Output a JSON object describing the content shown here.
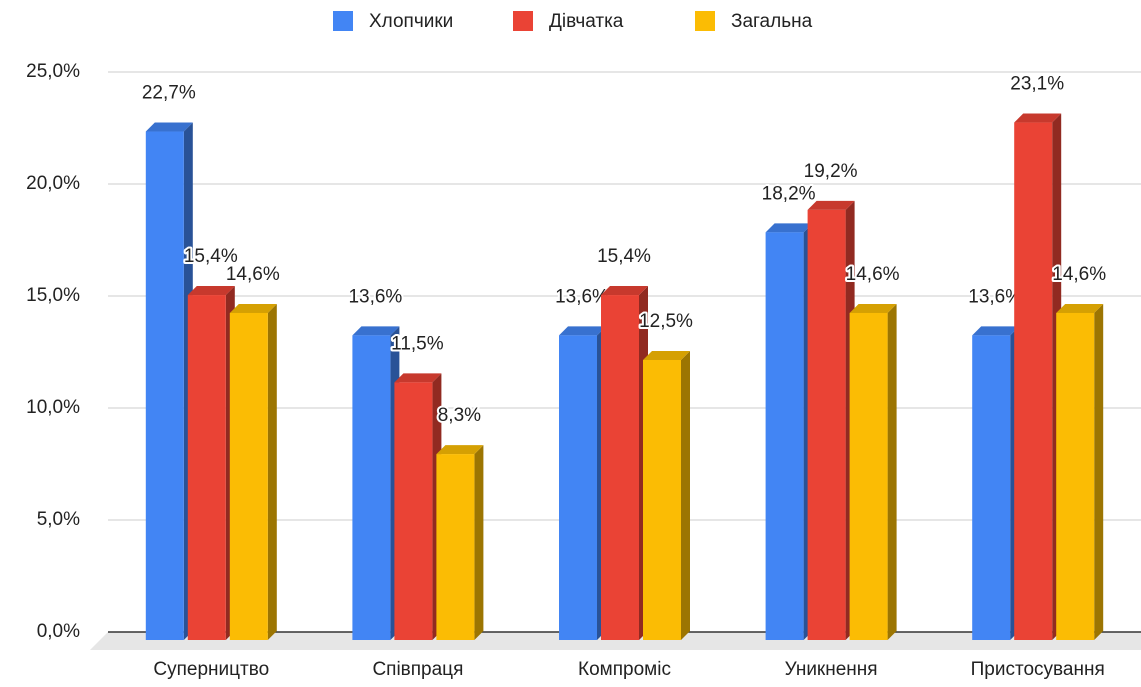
{
  "chart_data": {
    "type": "bar3d",
    "categories": [
      "Суперництво",
      "Співпраця",
      "Компроміс",
      "Уникнення",
      "Пристосування"
    ],
    "series": [
      {
        "name": "Хлопчики",
        "color": "#4285f4",
        "values": [
          22.7,
          13.6,
          13.6,
          18.2,
          13.6
        ],
        "value_labels": [
          "22,7%",
          "13,6%",
          "13,6%",
          "18,2%",
          "13,6%"
        ]
      },
      {
        "name": "Дівчатка",
        "color": "#ea4335",
        "values": [
          15.4,
          11.5,
          15.4,
          19.2,
          23.1
        ],
        "value_labels": [
          "15,4%",
          "11,5%",
          "15,4%",
          "19,2%",
          "23,1%"
        ]
      },
      {
        "name": "Загальна",
        "color": "#fbbc04",
        "values": [
          14.6,
          8.3,
          12.5,
          14.6,
          14.6
        ],
        "value_labels": [
          "14,6%",
          "8,3%",
          "12,5%",
          "14,6%",
          "14,6%"
        ]
      }
    ],
    "ylim": [
      0,
      25
    ],
    "yticks": [
      {
        "value": 0,
        "label": "0,0%"
      },
      {
        "value": 5,
        "label": "5,0%"
      },
      {
        "value": 10,
        "label": "10,0%"
      },
      {
        "value": 15,
        "label": "15,0%"
      },
      {
        "value": 20,
        "label": "20,0%"
      },
      {
        "value": 25,
        "label": "25,0%"
      }
    ],
    "grid": true,
    "legend": "top"
  }
}
